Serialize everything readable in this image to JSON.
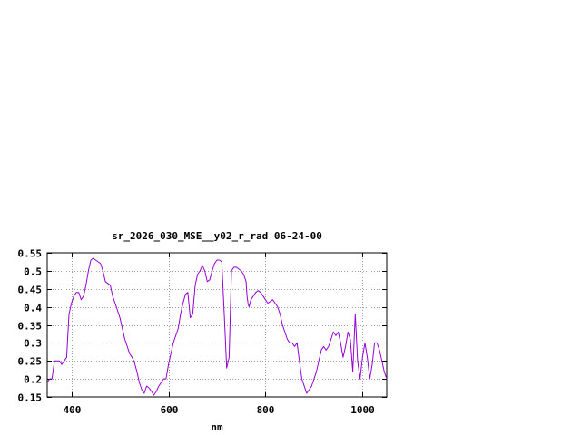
{
  "chart_data": {
    "type": "line",
    "title": "sr_2026_030_MSE__y02_r_rad 06-24-00",
    "xlabel": "nm",
    "ylabel": "",
    "xlim": [
      350,
      1050
    ],
    "ylim": [
      0.15,
      0.55
    ],
    "grid": true,
    "x_ticks": [
      400,
      600,
      800,
      1000
    ],
    "x_tick_labels": [
      "400",
      "600",
      "800",
      "1000"
    ],
    "y_ticks": [
      0.15,
      0.2,
      0.25,
      0.3,
      0.35,
      0.4,
      0.45,
      0.5,
      0.55
    ],
    "y_tick_labels": [
      "0.15",
      "0.2",
      "0.25",
      "0.3",
      "0.35",
      "0.4",
      "0.45",
      "0.5",
      "0.55"
    ],
    "series": [
      {
        "color": "#9400d3",
        "x": [
          350,
          355,
          360,
          365,
          370,
          375,
          380,
          385,
          390,
          395,
          400,
          405,
          410,
          415,
          420,
          425,
          430,
          435,
          440,
          445,
          450,
          455,
          460,
          465,
          470,
          475,
          480,
          485,
          490,
          495,
          500,
          505,
          510,
          515,
          520,
          525,
          530,
          535,
          540,
          545,
          550,
          555,
          560,
          565,
          570,
          575,
          580,
          585,
          590,
          595,
          600,
          605,
          610,
          615,
          620,
          625,
          630,
          635,
          640,
          645,
          650,
          655,
          660,
          665,
          670,
          675,
          680,
          685,
          690,
          695,
          700,
          705,
          710,
          715,
          720,
          725,
          730,
          735,
          740,
          745,
          750,
          755,
          760,
          762,
          764,
          766,
          770,
          775,
          780,
          785,
          790,
          795,
          800,
          805,
          810,
          815,
          820,
          825,
          830,
          835,
          840,
          845,
          850,
          855,
          860,
          865,
          870,
          875,
          880,
          885,
          890,
          895,
          900,
          905,
          910,
          915,
          920,
          925,
          930,
          935,
          940,
          945,
          950,
          955,
          960,
          965,
          970,
          975,
          980,
          985,
          990,
          995,
          1000,
          1005,
          1010,
          1015,
          1020,
          1025,
          1030,
          1035,
          1040,
          1045,
          1050
        ],
        "y": [
          0.19,
          0.2,
          0.2,
          0.25,
          0.25,
          0.25,
          0.24,
          0.25,
          0.26,
          0.38,
          0.41,
          0.43,
          0.44,
          0.44,
          0.42,
          0.43,
          0.46,
          0.5,
          0.53,
          0.535,
          0.53,
          0.525,
          0.52,
          0.5,
          0.47,
          0.465,
          0.46,
          0.43,
          0.41,
          0.39,
          0.37,
          0.34,
          0.31,
          0.29,
          0.27,
          0.26,
          0.245,
          0.22,
          0.19,
          0.17,
          0.16,
          0.18,
          0.175,
          0.165,
          0.155,
          0.165,
          0.18,
          0.19,
          0.2,
          0.2,
          0.24,
          0.27,
          0.3,
          0.32,
          0.34,
          0.38,
          0.41,
          0.435,
          0.44,
          0.37,
          0.38,
          0.46,
          0.49,
          0.5,
          0.515,
          0.5,
          0.47,
          0.475,
          0.5,
          0.52,
          0.53,
          0.53,
          0.525,
          0.38,
          0.23,
          0.26,
          0.5,
          0.51,
          0.51,
          0.505,
          0.5,
          0.49,
          0.47,
          0.43,
          0.41,
          0.4,
          0.42,
          0.43,
          0.44,
          0.445,
          0.44,
          0.43,
          0.42,
          0.41,
          0.415,
          0.42,
          0.41,
          0.4,
          0.38,
          0.35,
          0.33,
          0.31,
          0.3,
          0.3,
          0.29,
          0.3,
          0.25,
          0.2,
          0.18,
          0.16,
          0.17,
          0.18,
          0.2,
          0.22,
          0.25,
          0.28,
          0.29,
          0.28,
          0.29,
          0.31,
          0.33,
          0.32,
          0.33,
          0.3,
          0.26,
          0.29,
          0.33,
          0.31,
          0.22,
          0.38,
          0.25,
          0.2,
          0.26,
          0.3,
          0.26,
          0.2,
          0.24,
          0.3,
          0.3,
          0.28,
          0.25,
          0.22,
          0.2
        ]
      }
    ]
  }
}
